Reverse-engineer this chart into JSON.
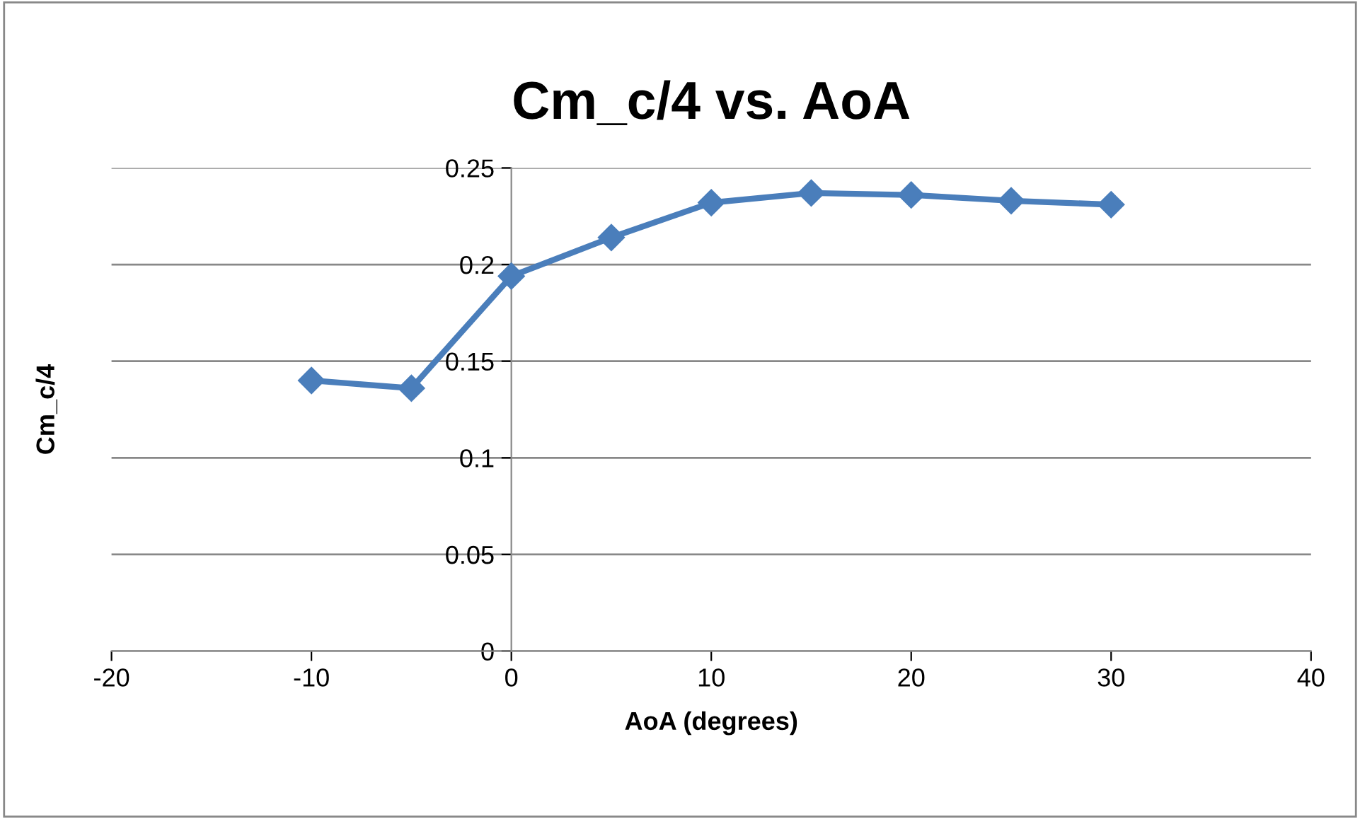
{
  "chart_data": {
    "type": "line",
    "title": "Cm_c/4 vs. AoA",
    "xlabel": "AoA (degrees)",
    "ylabel": "Cm_c/4",
    "x": [
      -10,
      -5,
      0,
      5,
      10,
      15,
      20,
      25,
      30
    ],
    "series": [
      {
        "color": "#4a7ebb",
        "values": [
          0.14,
          0.136,
          0.194,
          0.214,
          0.232,
          0.237,
          0.236,
          0.233,
          0.231
        ]
      }
    ],
    "xlim": [
      -20,
      40
    ],
    "xticks": [
      -20,
      -10,
      0,
      10,
      20,
      30,
      40
    ],
    "ylim": [
      0,
      0.25
    ],
    "yticks": [
      0,
      0.05,
      0.1,
      0.15,
      0.2,
      0.25
    ],
    "grid": "y",
    "marker": "diamond",
    "line_style": "solid",
    "legend": false
  }
}
